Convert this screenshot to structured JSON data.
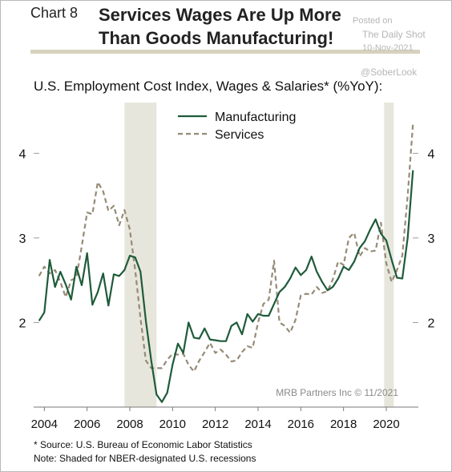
{
  "header": {
    "chart_number": "Chart 8",
    "title_line1": "Services Wages Are Up More",
    "title_line2": "Than Goods Manufacturing!"
  },
  "watermark": {
    "posted_on": "Posted on",
    "publisher": "The Daily Shot",
    "date": "10-Nov-2021",
    "handle": "@SoberLook"
  },
  "footer": {
    "source_note": "* Source: U.S. Bureau of Economic Labor Statistics",
    "shading_note": "Note: Shaded for NBER-designated U.S. recessions"
  },
  "colors": {
    "manufacturing": "#1f5b3a",
    "services": "#968b76",
    "recession_shading": "#e7e6dc",
    "axis": "#7a7a7a"
  },
  "chart_data": {
    "type": "line",
    "title": "U.S. Employment Cost Index, Wages & Salaries* (%YoY):",
    "credit": "MRB Partners Inc © 11/2021",
    "xlim": [
      2003.5,
      2021.5
    ],
    "ylim": [
      1.0,
      4.6
    ],
    "y_ticks": [
      2,
      3,
      4
    ],
    "y_tick_labels": [
      "2",
      "3",
      "4"
    ],
    "y_axis_sides": "left and right",
    "x_ticks": [
      2004,
      2006,
      2008,
      2010,
      2012,
      2014,
      2016,
      2018,
      2020
    ],
    "x_tick_labels": [
      "2004",
      "2006",
      "2008",
      "2010",
      "2012",
      "2014",
      "2016",
      "2018",
      "2020"
    ],
    "grid": false,
    "legend_position": "top-center",
    "recessions": [
      [
        2007.75,
        2009.25
      ],
      [
        2019.9,
        2020.35
      ]
    ],
    "series": [
      {
        "name": "Manufacturing",
        "style": "solid",
        "x": [
          2003.75,
          2004.0,
          2004.25,
          2004.5,
          2004.75,
          2005.0,
          2005.25,
          2005.5,
          2005.75,
          2006.0,
          2006.25,
          2006.5,
          2006.75,
          2007.0,
          2007.25,
          2007.5,
          2007.75,
          2008.0,
          2008.25,
          2008.5,
          2008.75,
          2009.0,
          2009.25,
          2009.5,
          2009.75,
          2010.0,
          2010.25,
          2010.5,
          2010.75,
          2011.0,
          2011.25,
          2011.5,
          2011.75,
          2012.0,
          2012.25,
          2012.5,
          2012.75,
          2013.0,
          2013.25,
          2013.5,
          2013.75,
          2014.0,
          2014.25,
          2014.5,
          2014.75,
          2015.0,
          2015.25,
          2015.5,
          2015.75,
          2016.0,
          2016.25,
          2016.5,
          2016.75,
          2017.0,
          2017.25,
          2017.5,
          2017.75,
          2018.0,
          2018.25,
          2018.5,
          2018.75,
          2019.0,
          2019.25,
          2019.5,
          2019.75,
          2020.0,
          2020.25,
          2020.5,
          2020.75,
          2021.0,
          2021.25
        ],
        "values": [
          2.02,
          2.12,
          2.74,
          2.42,
          2.6,
          2.45,
          2.27,
          2.66,
          2.44,
          2.82,
          2.21,
          2.36,
          2.58,
          2.2,
          2.57,
          2.55,
          2.62,
          2.79,
          2.77,
          2.6,
          2.02,
          1.55,
          1.15,
          1.06,
          1.17,
          1.5,
          1.75,
          1.64,
          2.0,
          1.82,
          1.81,
          1.93,
          1.8,
          1.79,
          1.78,
          1.78,
          1.96,
          2.0,
          1.86,
          2.1,
          2.01,
          2.1,
          2.08,
          2.08,
          2.22,
          2.36,
          2.42,
          2.52,
          2.65,
          2.56,
          2.62,
          2.78,
          2.6,
          2.48,
          2.38,
          2.42,
          2.52,
          2.66,
          2.62,
          2.72,
          2.88,
          2.96,
          3.1,
          3.22,
          3.05,
          2.97,
          2.74,
          2.53,
          2.52,
          3.0,
          3.8
        ]
      },
      {
        "name": "Services",
        "style": "dashed",
        "x": [
          2003.75,
          2004.0,
          2004.25,
          2004.5,
          2004.75,
          2005.0,
          2005.25,
          2005.5,
          2005.75,
          2006.0,
          2006.25,
          2006.5,
          2006.75,
          2007.0,
          2007.25,
          2007.5,
          2007.75,
          2008.0,
          2008.25,
          2008.5,
          2008.75,
          2009.0,
          2009.25,
          2009.5,
          2009.75,
          2010.0,
          2010.25,
          2010.5,
          2010.75,
          2011.0,
          2011.25,
          2011.5,
          2011.75,
          2012.0,
          2012.25,
          2012.5,
          2012.75,
          2013.0,
          2013.25,
          2013.5,
          2013.75,
          2014.0,
          2014.25,
          2014.5,
          2014.75,
          2015.0,
          2015.25,
          2015.5,
          2015.75,
          2016.0,
          2016.25,
          2016.5,
          2016.75,
          2017.0,
          2017.25,
          2017.5,
          2017.75,
          2018.0,
          2018.25,
          2018.5,
          2018.75,
          2019.0,
          2019.25,
          2019.5,
          2019.75,
          2020.0,
          2020.25,
          2020.5,
          2020.75,
          2021.0,
          2021.25
        ],
        "values": [
          2.55,
          2.66,
          2.58,
          2.62,
          2.48,
          2.3,
          2.5,
          2.53,
          2.9,
          3.3,
          3.28,
          3.66,
          3.55,
          3.32,
          3.38,
          3.15,
          3.33,
          3.1,
          2.62,
          2.05,
          1.55,
          1.46,
          1.46,
          1.46,
          1.56,
          1.63,
          1.62,
          1.63,
          1.5,
          1.42,
          1.55,
          1.65,
          1.76,
          1.64,
          1.68,
          1.62,
          1.54,
          1.55,
          1.65,
          1.72,
          1.7,
          2.0,
          2.22,
          2.27,
          2.73,
          2.0,
          1.96,
          1.88,
          2.03,
          2.32,
          2.34,
          2.33,
          2.42,
          2.35,
          2.37,
          2.51,
          2.72,
          2.68,
          3.0,
          3.06,
          2.78,
          2.88,
          2.84,
          2.85,
          3.18,
          2.7,
          2.48,
          2.62,
          2.79,
          3.5,
          4.35
        ]
      }
    ]
  }
}
